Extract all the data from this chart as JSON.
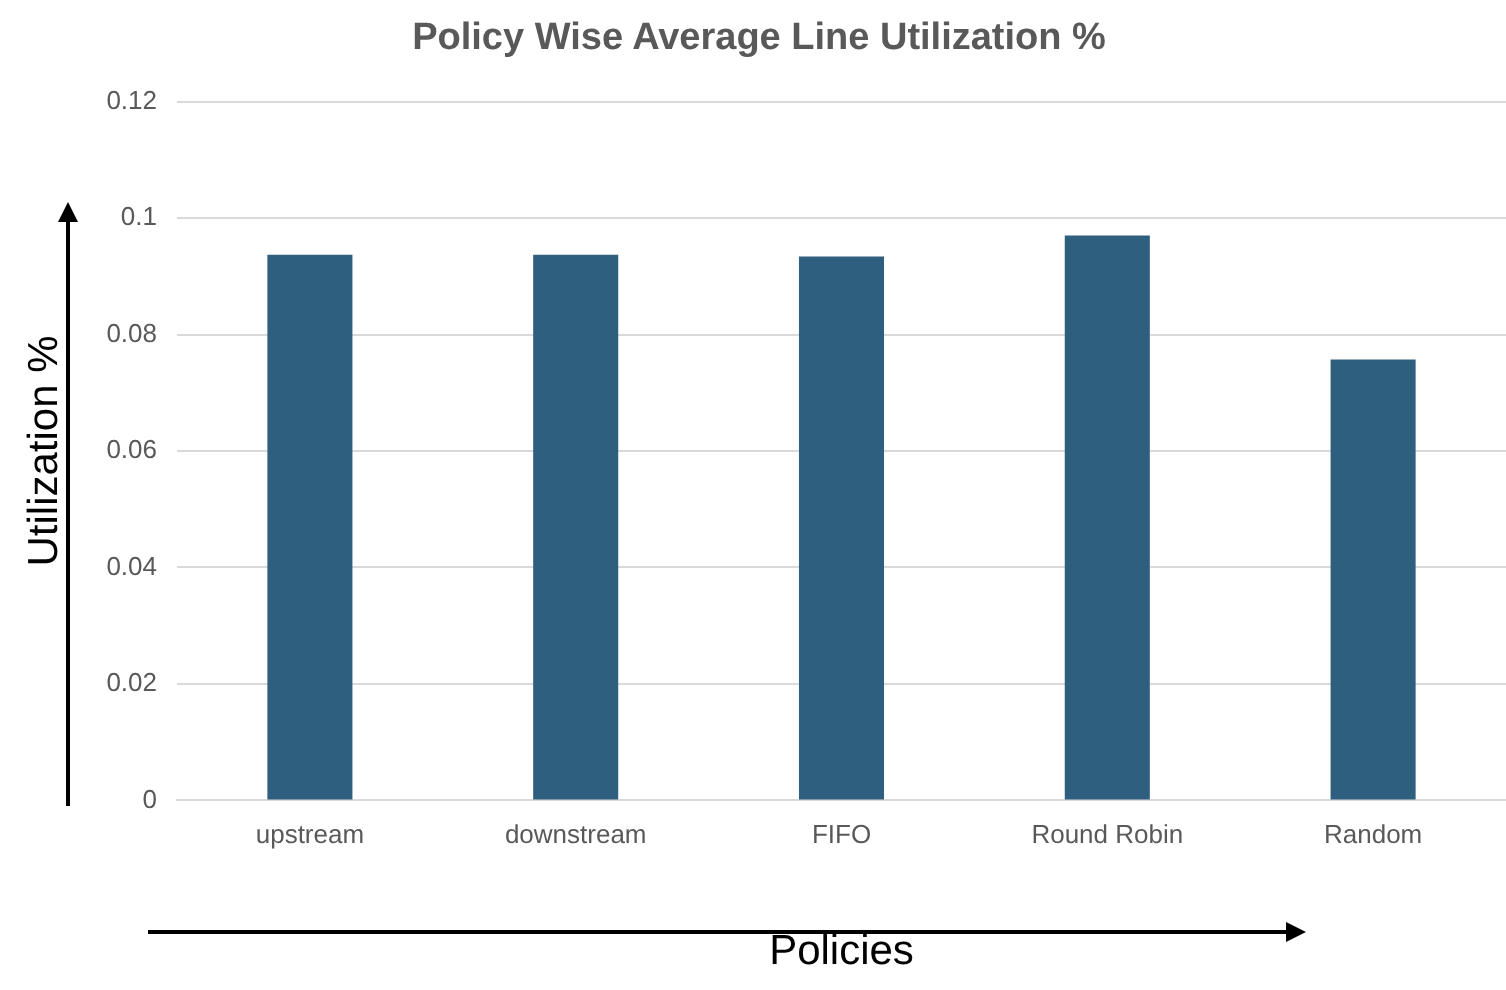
{
  "chart_data": {
    "type": "bar",
    "title": "Policy Wise Average Line Utilization %",
    "xlabel": "Policies",
    "ylabel": "Utilization %",
    "categories": [
      "upstream",
      "downstream",
      "FIFO",
      "Round Robin",
      "Random"
    ],
    "values": [
      0.0937,
      0.0937,
      0.0934,
      0.097,
      0.0757
    ],
    "color": "#2e5f7e",
    "ylim": [
      0,
      0.12
    ],
    "yticks": [
      0,
      0.02,
      0.04,
      0.06,
      0.08,
      0.1,
      0.12
    ],
    "grid": "y",
    "legend": false
  }
}
